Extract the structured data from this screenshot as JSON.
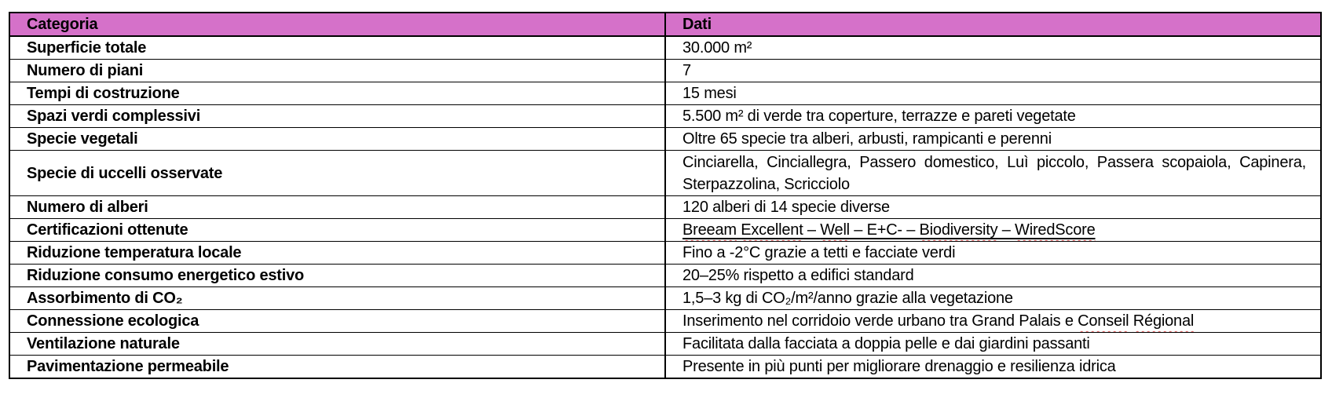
{
  "table": {
    "header": {
      "category": "Categoria",
      "data": "Dati"
    },
    "header_bg": "#d571c9",
    "rows": [
      {
        "category": "Superficie totale",
        "value": "30.000 m²"
      },
      {
        "category": "Numero di piani",
        "value": "7"
      },
      {
        "category": "Tempi di costruzione",
        "value": "15 mesi"
      },
      {
        "category": "Spazi verdi complessivi",
        "value": "5.500 m² di verde tra coperture, terrazze e pareti vegetate"
      },
      {
        "category": "Specie vegetali",
        "value": "Oltre 65 specie tra alberi, arbusti, rampicanti e perenni"
      },
      {
        "category": "Specie di uccelli osservate",
        "value": "Cinciarella, Cinciallegra, Passero domestico, Luì piccolo, Passera scopaiola, Capinera, Sterpazzolina, Scricciolo",
        "tall": true,
        "justify": true
      },
      {
        "category": "Numero di alberi",
        "value": "120 alberi di 14 specie diverse"
      },
      {
        "category": "Certificazioni ottenute",
        "value": "Breeam Excellent – Well – E+C- – Biodiversity – WiredScore",
        "underline": true,
        "misspelled": [
          "Breeam",
          "Excellent",
          "Well",
          "Biodiversity",
          "WiredScore"
        ]
      },
      {
        "category": "Riduzione temperatura locale",
        "value": "Fino a -2°C grazie a tetti e facciate verdi"
      },
      {
        "category": "Riduzione consumo energetico estivo",
        "value": "20–25% rispetto a edifici standard"
      },
      {
        "category": "Assorbimento di CO₂",
        "value": "1,5–3 kg di CO₂/m²/anno grazie alla vegetazione"
      },
      {
        "category": "Connessione ecologica",
        "value": "Inserimento nel corridoio verde urbano tra Grand Palais e Conseil Régional",
        "misspelled": [
          "Conseil",
          "Régional"
        ]
      },
      {
        "category": "Ventilazione naturale",
        "value": "Facilitata dalla facciata a doppia pelle e dai giardini passanti"
      },
      {
        "category": "Pavimentazione permeabile",
        "value": "Presente in più punti per migliorare drenaggio e resilienza idrica"
      }
    ]
  }
}
